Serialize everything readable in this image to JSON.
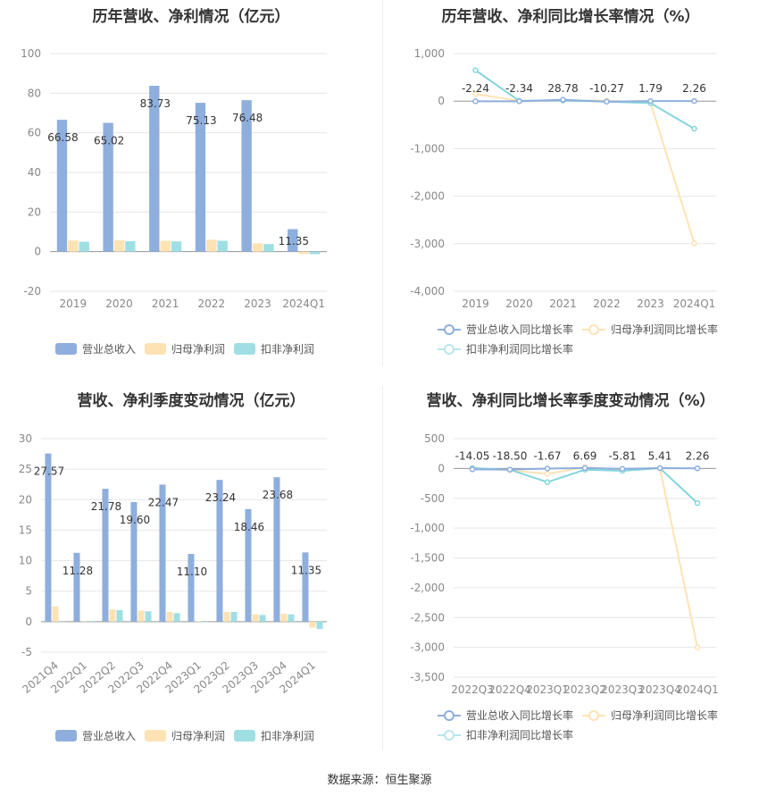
{
  "source_label": "数据来源：恒生聚源",
  "colors": {
    "revenue": "#8eaedd",
    "net_profit": "#fde3b4",
    "deducted": "#9fdfe4",
    "rev_line": "#8eaedd",
    "np_line": "#fde3b4",
    "ded_line": "#84d5dc"
  },
  "chart_data": [
    {
      "type": "bar",
      "title": "历年营收、净利情况（亿元）",
      "categories": [
        "2019",
        "2020",
        "2021",
        "2022",
        "2023",
        "2024Q1"
      ],
      "ylim": [
        -20,
        100
      ],
      "yticks": [
        "100",
        "80",
        "60",
        "40",
        "20",
        "0",
        "-20"
      ],
      "series": [
        {
          "name": "营业总收入",
          "values": [
            66.58,
            65.02,
            83.73,
            75.13,
            76.48,
            11.35
          ]
        },
        {
          "name": "归母净利润",
          "values": [
            5.6,
            5.8,
            5.5,
            6.0,
            4.2,
            -1.2
          ]
        },
        {
          "name": "扣非净利润",
          "values": [
            5.0,
            5.3,
            5.2,
            5.5,
            3.8,
            -1.3
          ]
        }
      ],
      "data_labels": [
        "66.58",
        "65.02",
        "83.73",
        "75.13",
        "76.48",
        "11.35"
      ],
      "legend": [
        "营业总收入",
        "归母净利润",
        "扣非净利润"
      ]
    },
    {
      "type": "line",
      "title": "历年营收、净利同比增长率情况（%）",
      "categories": [
        "2019",
        "2020",
        "2021",
        "2022",
        "2023",
        "2024Q1"
      ],
      "ylim": [
        -4000,
        1000
      ],
      "yticks": [
        "1,000",
        "0",
        "-1,000",
        "-2,000",
        "-3,000",
        "-4,000"
      ],
      "series": [
        {
          "name": "营业总收入同比增长率",
          "values": [
            -2.24,
            -2.34,
            28.78,
            -10.27,
            1.79,
            2.26
          ]
        },
        {
          "name": "归母净利润同比增长率",
          "values": [
            150,
            5,
            10,
            8,
            -30,
            -2990
          ]
        },
        {
          "name": "扣非净利润同比增长率",
          "values": [
            650,
            5,
            15,
            -10,
            -40,
            -580
          ]
        }
      ],
      "data_labels": [
        "-2.24",
        "-2.34",
        "28.78",
        "-10.27",
        "1.79",
        "2.26"
      ],
      "legend": [
        "营业总收入同比增长率",
        "归母净利润同比增长率",
        "扣非净利润同比增长率"
      ]
    },
    {
      "type": "bar",
      "title": "营收、净利季度变动情况（亿元）",
      "categories": [
        "2021Q4",
        "2022Q1",
        "2022Q2",
        "2022Q3",
        "2022Q4",
        "2023Q1",
        "2023Q2",
        "2023Q3",
        "2023Q4",
        "2024Q1"
      ],
      "ylim": [
        -5,
        30
      ],
      "yticks": [
        "30",
        "25",
        "20",
        "15",
        "10",
        "5",
        "0",
        "-5"
      ],
      "series": [
        {
          "name": "营业总收入",
          "values": [
            27.57,
            11.28,
            21.78,
            19.6,
            22.47,
            11.1,
            23.24,
            18.46,
            23.68,
            11.35
          ]
        },
        {
          "name": "归母净利润",
          "values": [
            2.5,
            0.1,
            2.0,
            1.8,
            1.6,
            0.05,
            1.6,
            1.2,
            1.3,
            -1.0
          ]
        },
        {
          "name": "扣非净利润",
          "values": [
            0.0,
            0.1,
            1.9,
            1.7,
            1.4,
            -0.1,
            1.6,
            1.1,
            1.2,
            -1.2
          ]
        }
      ],
      "data_labels": [
        "27.57",
        "11.28",
        "21.78",
        "19.60",
        "22.47",
        "11.10",
        "23.24",
        "18.46",
        "23.68",
        "11.35"
      ],
      "legend": [
        "营业总收入",
        "归母净利润",
        "扣非净利润"
      ]
    },
    {
      "type": "line",
      "title": "营收、净利同比增长率季度变动情况（%）",
      "categories": [
        "2022Q3",
        "2022Q4",
        "2023Q1",
        "2023Q2",
        "2023Q3",
        "2023Q4",
        "2024Q1"
      ],
      "ylim": [
        -3500,
        500
      ],
      "yticks": [
        "500",
        "0",
        "-500",
        "-1,000",
        "-1,500",
        "-2,000",
        "-2,500",
        "-3,000",
        "-3,500"
      ],
      "series": [
        {
          "name": "营业总收入同比增长率",
          "values": [
            -14.05,
            -18.5,
            -1.67,
            6.69,
            -5.81,
            5.41,
            2.26
          ]
        },
        {
          "name": "归母净利润同比增长率",
          "values": [
            10,
            -30,
            -90,
            20,
            -20,
            10,
            -3000
          ]
        },
        {
          "name": "扣非净利润同比增长率",
          "values": [
            5,
            -20,
            -230,
            -20,
            -40,
            5,
            -580
          ]
        }
      ],
      "data_labels": [
        "-14.05",
        "-18.50",
        "-1.67",
        "6.69",
        "-5.81",
        "5.41",
        "2.26"
      ],
      "legend": [
        "营业总收入同比增长率",
        "归母净利润同比增长率",
        "扣非净利润同比增长率"
      ]
    }
  ]
}
